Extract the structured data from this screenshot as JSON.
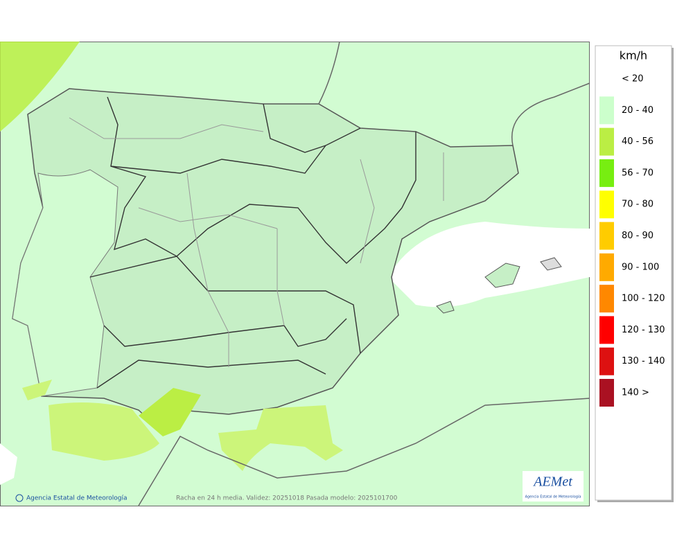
{
  "map": {
    "credit": "Agencia Estatal de Meteorología",
    "footer": "Racha en 24 h media. Validez: 20251018 Pasada modelo: 2025101700",
    "logo": {
      "name": "AEMet",
      "subtitle": "Agencia Estatal de Meteorología"
    }
  },
  "legend": {
    "unit": "km/h",
    "items": [
      {
        "label": "< 20",
        "color": "#ffffff"
      },
      {
        "label": "20 - 40",
        "color": "#ccffcc"
      },
      {
        "label": "40 - 56",
        "color": "#bbee44"
      },
      {
        "label": "56 - 70",
        "color": "#77ee11"
      },
      {
        "label": "70 - 80",
        "color": "#ffff00"
      },
      {
        "label": "80 - 90",
        "color": "#ffcc00"
      },
      {
        "label": "90 - 100",
        "color": "#ffaa00"
      },
      {
        "label": "100 - 120",
        "color": "#ff8800"
      },
      {
        "label": "120 - 130",
        "color": "#ff0000"
      },
      {
        "label": "130 - 140",
        "color": "#dd1111"
      },
      {
        "label": "140 >",
        "color": "#aa1122"
      }
    ]
  }
}
